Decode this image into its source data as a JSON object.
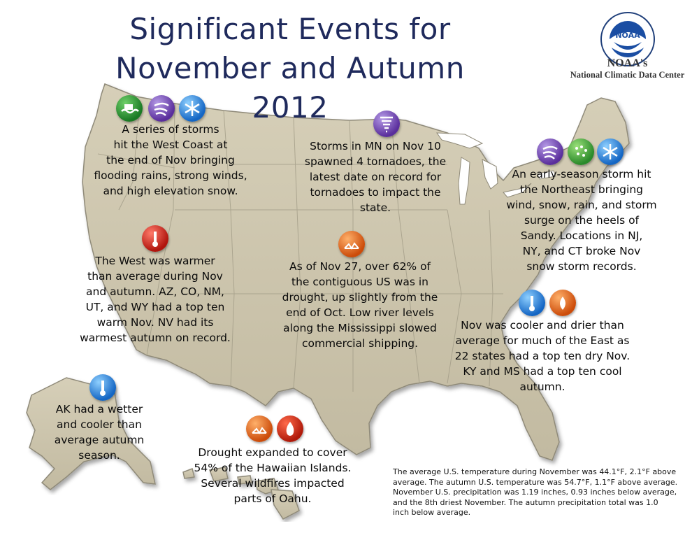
{
  "title_line1": "Significant Events for",
  "title_line2": "November and Autumn 2012",
  "logo": {
    "text": "NOAA",
    "line1": "NOAA's",
    "line2": "National Climatic Data Center"
  },
  "callouts": {
    "west_coast": [
      "A series of storms",
      "hit the West Coast at",
      "the end of Nov bringing",
      "flooding rains, strong winds,",
      "and high elevation snow."
    ],
    "minnesota": [
      "Storms in MN on Nov 10",
      "spawned 4 tornadoes, the",
      "latest date on record for",
      "tornadoes to impact the",
      "state."
    ],
    "northeast": [
      "An early-season storm hit",
      "the Northeast bringing",
      "wind, snow, rain, and storm",
      "surge on the heels of",
      "Sandy. Locations in NJ,",
      "NY, and CT broke Nov",
      "snow storm records."
    ],
    "west_warm": [
      "The West was warmer",
      "than average during Nov",
      "and autumn. AZ, CO, NM,",
      "UT, and WY had a top ten",
      "warm Nov. NV had its",
      "warmest autumn on record."
    ],
    "drought": [
      "As of Nov 27, over 62% of",
      "the contiguous US was in",
      "drought, up slightly from the",
      "end of Oct. Low river levels",
      "along the Mississippi slowed",
      "commercial shipping."
    ],
    "east": [
      "Nov was cooler and drier than",
      "average for much of the East as",
      "22 states had a top ten dry Nov.",
      "KY and MS had a top ten cool",
      "autumn."
    ],
    "alaska": [
      "AK had a wetter",
      "and cooler than",
      "average autumn",
      "season."
    ],
    "hawaii": [
      "Drought expanded to cover",
      "54% of the Hawaiian Islands.",
      "Several wildfires impacted",
      "parts of Oahu."
    ]
  },
  "stats": [
    "The average U.S. temperature during November was 44.1°F, 2.1°F above",
    "average. The autumn U.S. temperature was 54.7°F, 1.1°F above average.",
    "November U.S. precipitation was 1.19 inches, 0.93 inches below average,",
    "and the 8th driest November. The autumn precipitation total was 1.0",
    "inch below average."
  ],
  "colors": {
    "title": "#1f2a5c",
    "land": "#cbc3ab",
    "land_edge": "#8f8a79"
  },
  "icons": [
    "flood-icon",
    "wind-icon",
    "snow-icon",
    "tornado-icon",
    "warm-icon",
    "drought-icon",
    "cool-icon",
    "fire-icon",
    "rain-icon"
  ]
}
